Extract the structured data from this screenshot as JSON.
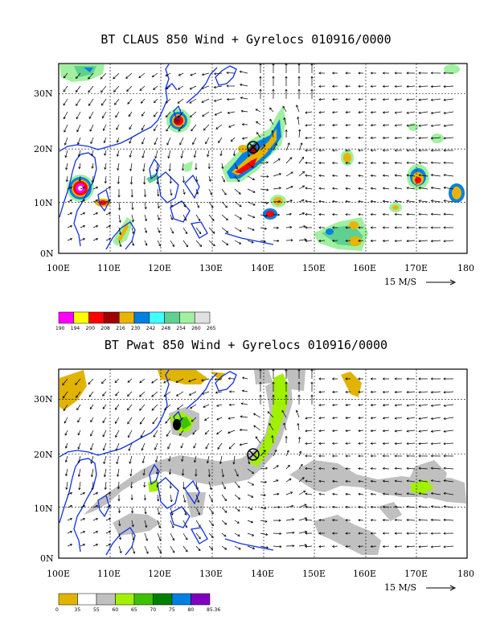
{
  "maps": [
    {
      "title": "BT CLAUS 850 Wind + Gyrelocs 010916/0000",
      "lat_labels": [
        "30N",
        "20N",
        "10N",
        "0N"
      ],
      "lon_labels": [
        "100E",
        "110E",
        "120E",
        "130E",
        "140E",
        "150E",
        "160E",
        "170E",
        "180"
      ],
      "vector_scale_label": "15 M/S",
      "colorbar": {
        "labels": [
          "190",
          "194",
          "200",
          "208",
          "216",
          "230",
          "242",
          "248",
          "254",
          "260",
          "265"
        ],
        "colors": [
          "#ff00ff",
          "#ffff00",
          "#ff0000",
          "#a00000",
          "#e8b400",
          "#0080e0",
          "#40ffff",
          "#60d090",
          "#a0f0a0",
          "#e0e0e0"
        ]
      }
    },
    {
      "title": "BT Pwat 850 Wind + Gyrelocs 010916/0000",
      "lat_labels": [
        "30N",
        "20N",
        "10N",
        "0N"
      ],
      "lon_labels": [
        "100E",
        "110E",
        "120E",
        "130E",
        "140E",
        "150E",
        "160E",
        "170E",
        "180"
      ],
      "vector_scale_label": "15 M/S",
      "colorbar": {
        "labels": [
          "0",
          "35",
          "55",
          "60",
          "65",
          "70",
          "75",
          "80",
          "85.36"
        ],
        "colors": [
          "#e0b400",
          "#ffffff",
          "#c0c0c0",
          "#a0f000",
          "#40c000",
          "#008000",
          "#0080e0",
          "#8000c0"
        ]
      }
    }
  ]
}
